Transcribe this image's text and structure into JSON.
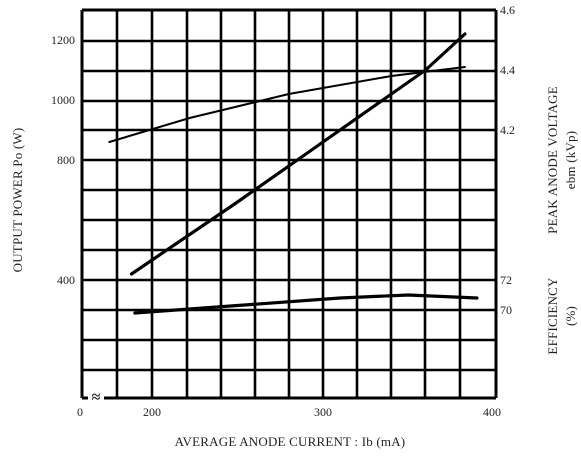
{
  "chart_data": {
    "type": "line",
    "title": "",
    "xlabel": "AVERAGE ANODE CURRENT : Ib (mA)",
    "xlim": [
      0,
      400
    ],
    "x_ticks": [
      "0",
      "200",
      "300",
      "400"
    ],
    "axis_break_symbol": "≈",
    "grid": true,
    "left_axis": {
      "label": "OUTPUT POWER Po (W)",
      "ticks": [
        "400",
        "800",
        "1000",
        "1200"
      ]
    },
    "right_axis_voltage": {
      "label_line1": "PEAK ANODE VOLTAGE",
      "label_line2": "ebm (kVp)",
      "ticks": [
        "4.2",
        "4.4",
        "4.6"
      ]
    },
    "right_axis_efficiency": {
      "label_line1": "EFFICIENCY",
      "label_line2": "(%)",
      "ticks": [
        "70",
        "72"
      ]
    },
    "series": [
      {
        "axis": "left_power",
        "x": [
          188,
          250,
          310,
          340,
          360,
          383
        ],
        "y": [
          420,
          660,
          900,
          1020,
          1100,
          1220
        ]
      },
      {
        "axis": "right_voltage",
        "x": [
          175,
          222,
          280,
          340,
          383
        ],
        "y": [
          4.16,
          4.24,
          4.32,
          4.38,
          4.41
        ]
      },
      {
        "axis": "right_efficiency",
        "x": [
          190,
          250,
          310,
          350,
          390
        ],
        "y": [
          69.8,
          70.3,
          70.8,
          71.0,
          70.8
        ]
      }
    ]
  }
}
